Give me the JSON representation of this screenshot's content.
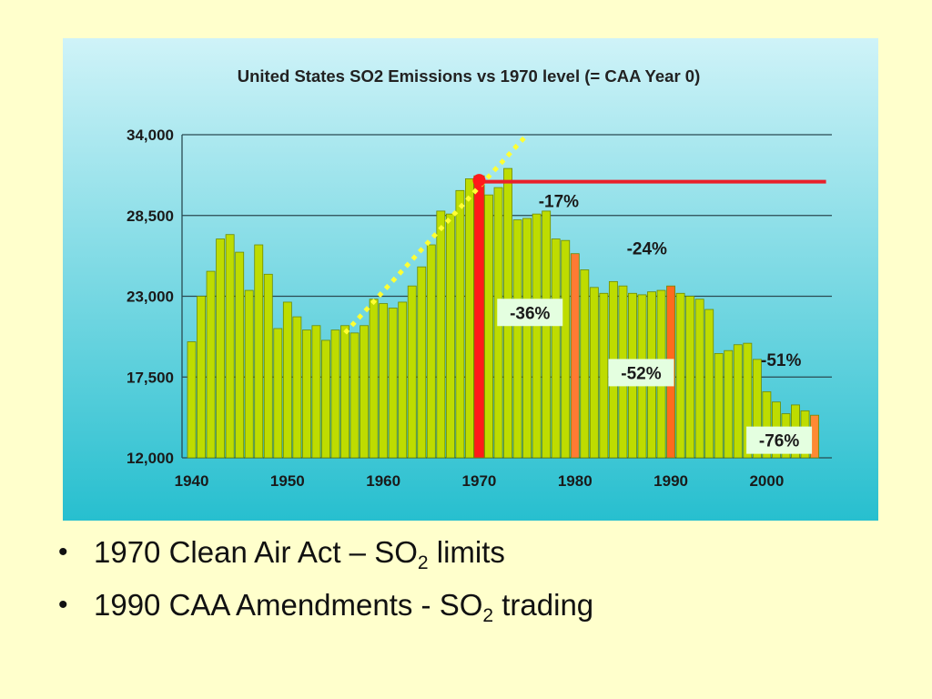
{
  "colors": {
    "slide_bg": "#FFFFCC",
    "panel_top": "#CFF3F8",
    "panel_bottom": "#27BFCF",
    "bar_fill": "#BEDC00",
    "bar_edge": "#6E8A00",
    "highlight_1970": "#FF1A1A",
    "reference_line": "#E8202A",
    "bar_1980": "#FF7A33",
    "bar_1990": "#FF6A1E",
    "bar_2005": "#FF8A33",
    "trend_dots": "#FFFF33",
    "label_box": "#E4FFE0"
  },
  "chart_data": {
    "type": "bar",
    "title": "United States SO2 Emissions vs 1970 level (= CAA Year 0)",
    "xlabel": "",
    "ylabel": "",
    "ylim": [
      12000,
      34000
    ],
    "y_ticks": [
      12000,
      17500,
      23000,
      28500,
      34000
    ],
    "y_tick_labels": [
      "12,000",
      "17,500",
      "23,000",
      "28,500",
      "34,000"
    ],
    "x_ticks": [
      1940,
      1950,
      1960,
      1970,
      1980,
      1990,
      2000
    ],
    "x_tick_labels": [
      "1940",
      "1950",
      "1960",
      "1970",
      "1980",
      "1990",
      "2000"
    ],
    "grid": true,
    "categories": [
      1940,
      1941,
      1942,
      1943,
      1944,
      1945,
      1946,
      1947,
      1948,
      1949,
      1950,
      1951,
      1952,
      1953,
      1954,
      1955,
      1956,
      1957,
      1958,
      1959,
      1960,
      1961,
      1962,
      1963,
      1964,
      1965,
      1966,
      1967,
      1968,
      1969,
      1970,
      1971,
      1972,
      1973,
      1974,
      1975,
      1976,
      1977,
      1978,
      1979,
      1980,
      1981,
      1982,
      1983,
      1984,
      1985,
      1986,
      1987,
      1988,
      1989,
      1990,
      1991,
      1992,
      1993,
      1994,
      1995,
      1996,
      1997,
      1998,
      1999,
      2000,
      2001,
      2002,
      2003,
      2004,
      2005
    ],
    "values": [
      19900,
      23000,
      24700,
      26900,
      27200,
      26000,
      23400,
      26500,
      24500,
      20800,
      22600,
      21600,
      20700,
      21000,
      20000,
      20700,
      21000,
      20500,
      21000,
      22800,
      22500,
      22200,
      22600,
      23700,
      25000,
      26500,
      28800,
      28600,
      30200,
      31000,
      31200,
      29900,
      30400,
      31700,
      28200,
      28300,
      28600,
      28800,
      26900,
      26800,
      25900,
      24800,
      23600,
      23200,
      24000,
      23700,
      23200,
      23100,
      23300,
      23400,
      23700,
      23200,
      23000,
      22800,
      22100,
      19100,
      19300,
      19700,
      19800,
      18700,
      16500,
      15800,
      15000,
      15600,
      15200,
      14900
    ],
    "highlighted": {
      "1970": "highlight_1970",
      "1980": "bar_1980",
      "1990": "bar_1990",
      "2005": "bar_2005"
    },
    "reference_line": {
      "value": 30800,
      "from": 1970,
      "to": 2006
    },
    "trend_line": {
      "from": [
        1956,
        20500
      ],
      "to": [
        1975,
        34000
      ]
    },
    "annotations": [
      {
        "text": "-17%",
        "x": 1978.3,
        "y": 29500,
        "boxed": false
      },
      {
        "text": "-24%",
        "x": 1987.5,
        "y": 26300,
        "boxed": false
      },
      {
        "text": "-36%",
        "x": 1975.3,
        "y": 21900,
        "boxed": true
      },
      {
        "text": "-52%",
        "x": 1986.9,
        "y": 17800,
        "boxed": true
      },
      {
        "text": "-51%",
        "x": 2001.5,
        "y": 18700,
        "boxed": false
      },
      {
        "text": "-76%",
        "x": 2001.3,
        "y": 13200,
        "boxed": true
      }
    ]
  },
  "bullets": [
    {
      "pre": "1970 Clean Air Act –  SO",
      "sub": "2",
      "post": " limits"
    },
    {
      "pre": "1990 CAA Amendments - SO",
      "sub": "2",
      "post": " trading"
    }
  ],
  "bullet_char": "•"
}
